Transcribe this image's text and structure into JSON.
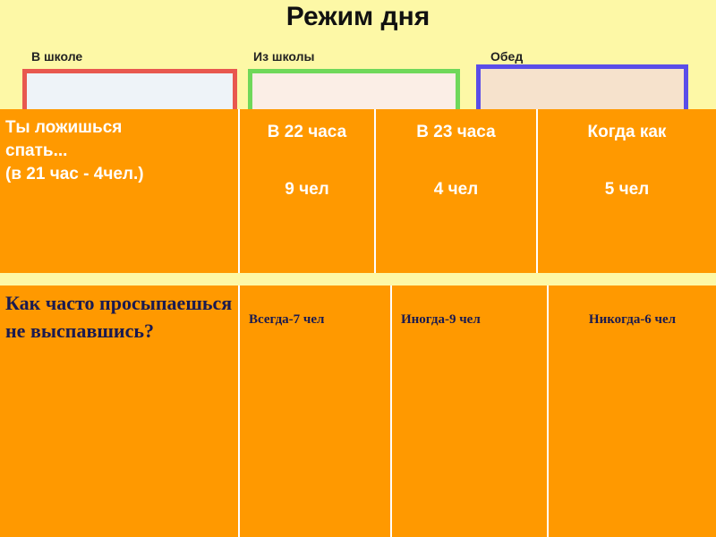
{
  "slide": {
    "title": "Режим дня",
    "labels": [
      "В школе",
      "Из школы",
      "Обед"
    ]
  },
  "table1": {
    "question_line1": "Ты ложишься спать...",
    "question_line2": "(в 21 час - 4чел.)",
    "answers": [
      {
        "label": "В 22 часа",
        "count": "9 чел"
      },
      {
        "label": "В 23 часа",
        "count": "4 чел"
      },
      {
        "label": "Когда как",
        "count": "5 чел"
      }
    ]
  },
  "table2": {
    "question": "Как часто просыпаешься не выспавшись?",
    "answers": [
      "Всегда-7 чел",
      "Иногда-9 чел",
      "Никогда-6 чел"
    ]
  },
  "colors": {
    "background": "#fdf8a6",
    "cell": "#ff9900",
    "frame_red": "#e8584f",
    "frame_green": "#6fd85a",
    "frame_blue": "#5a4de8"
  }
}
